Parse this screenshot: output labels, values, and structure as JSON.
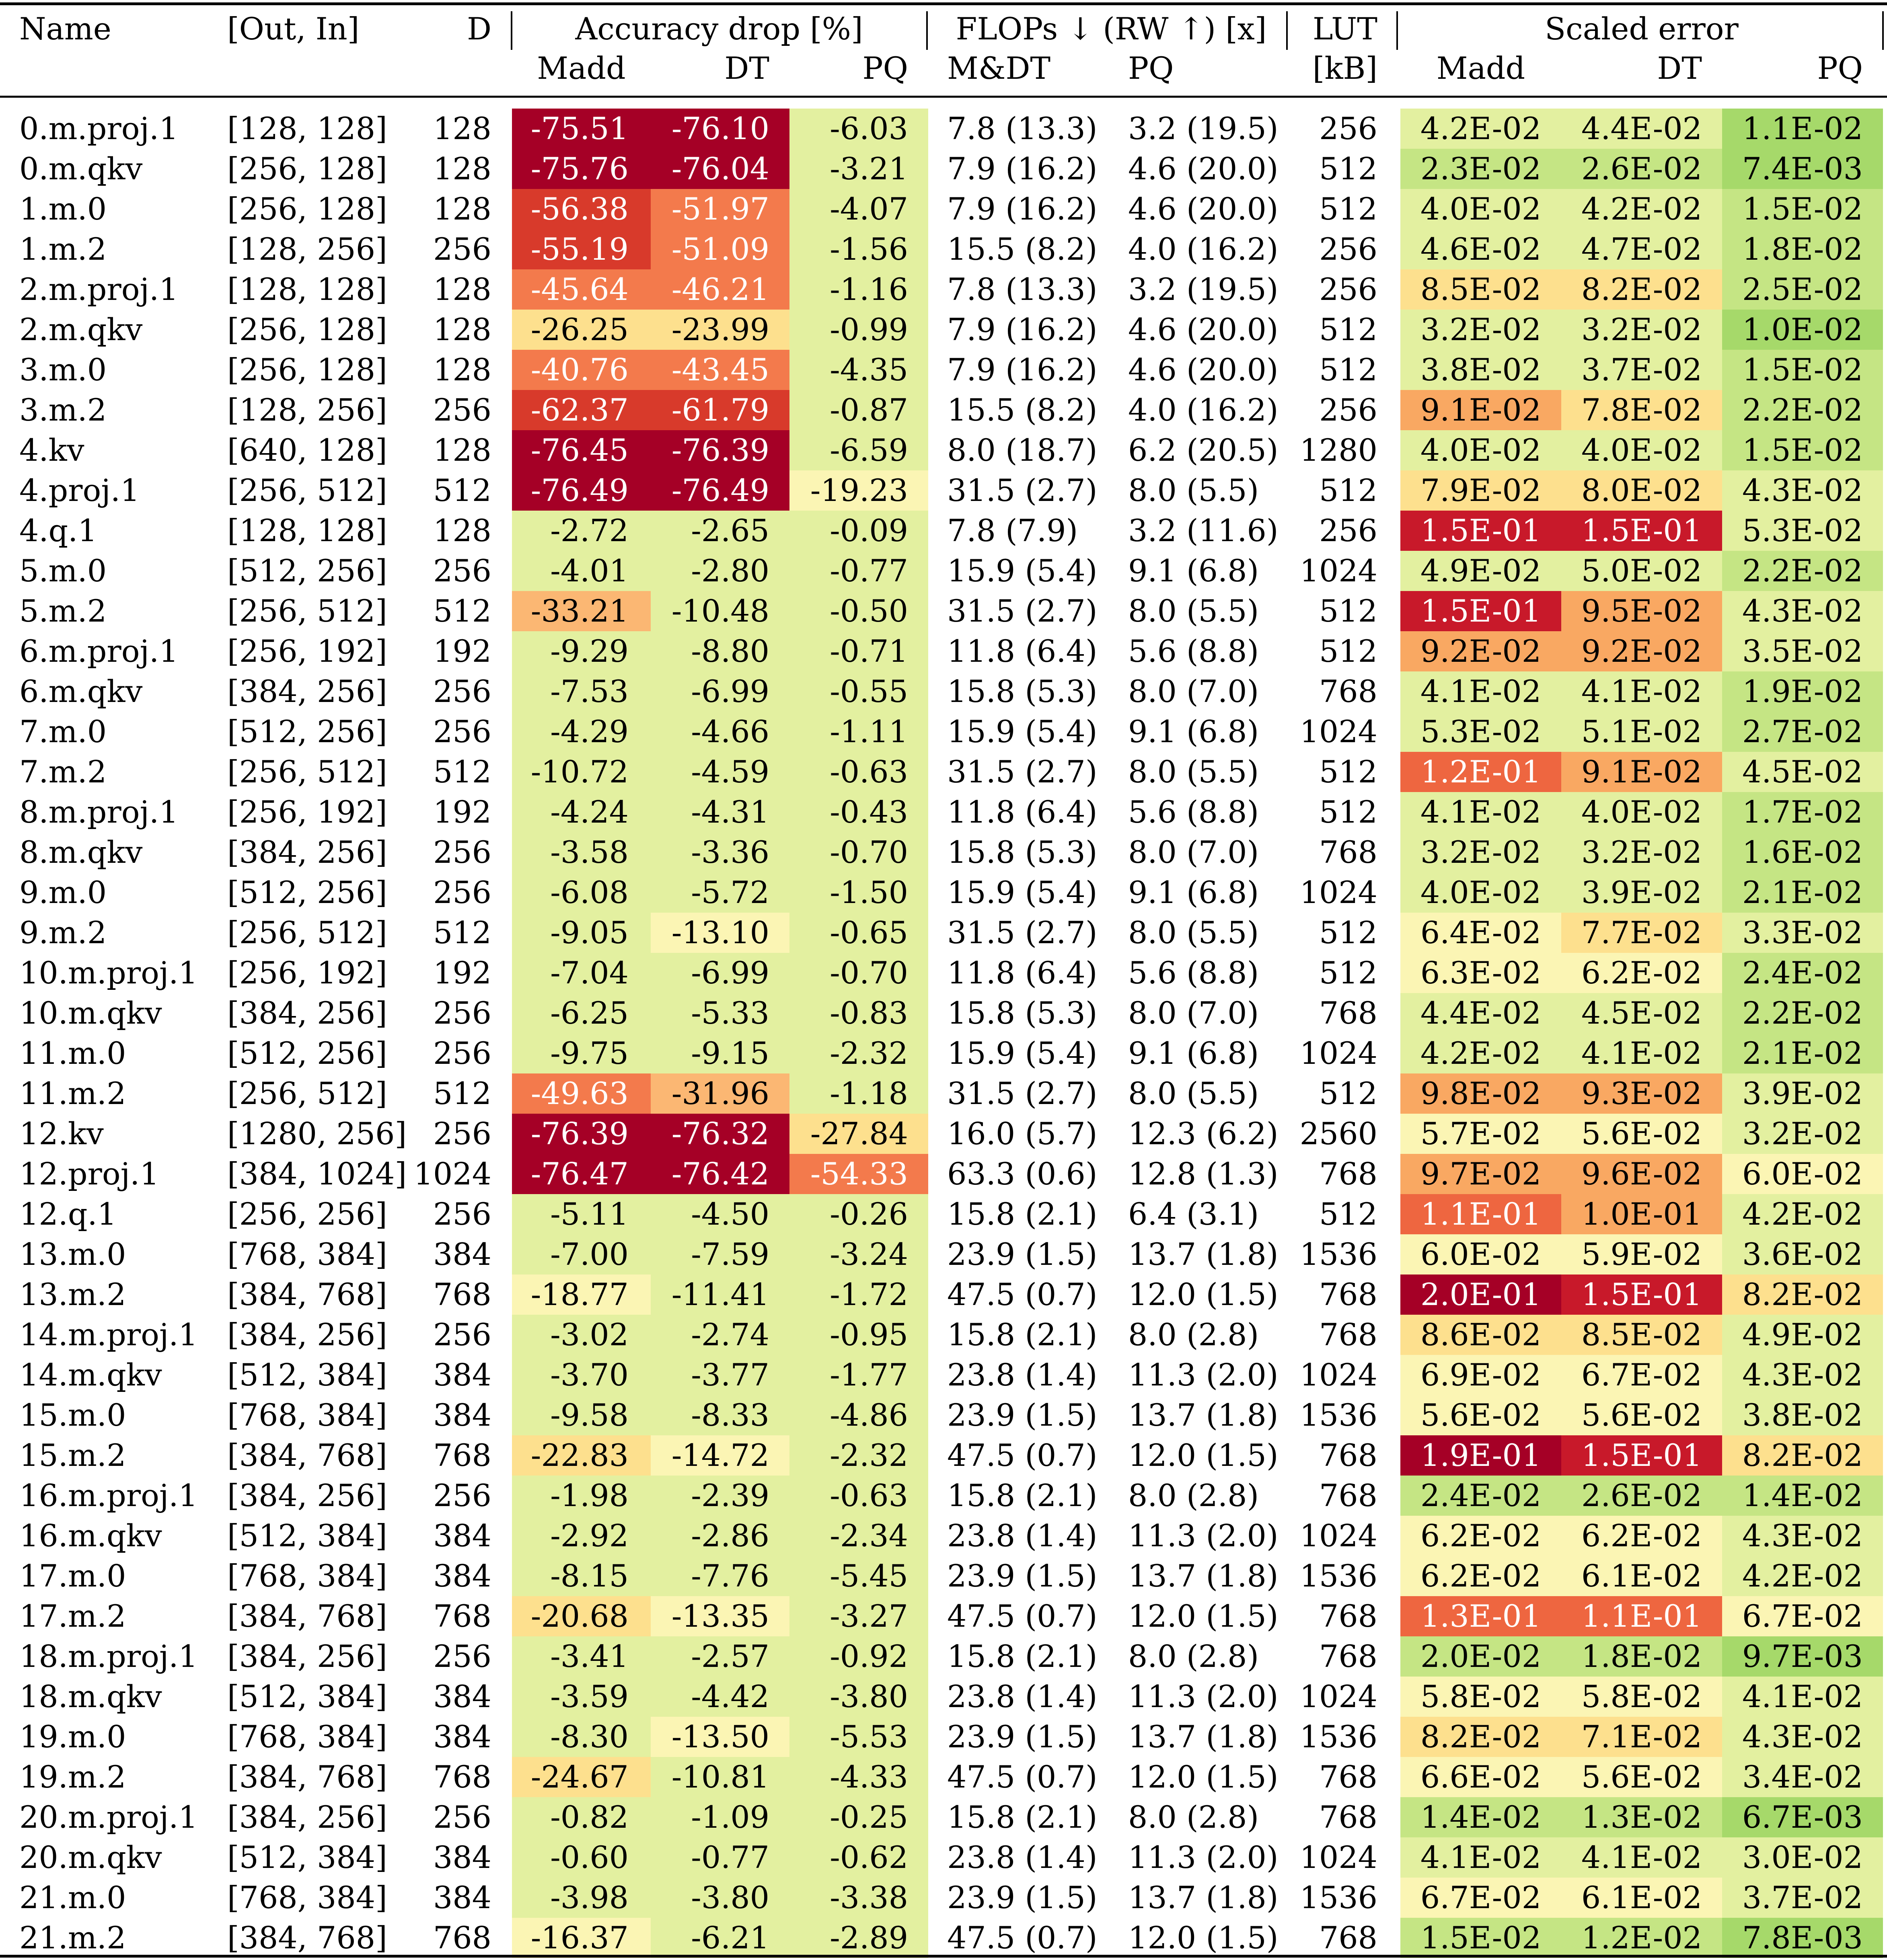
{
  "chart_data": {
    "type": "table",
    "header": {
      "name": "Name",
      "shape": "[Out, In]",
      "d": "D",
      "acc_group": "Accuracy drop [%]",
      "flops_group": "FLOPs ↓ (RW ↑) [x]",
      "lut_top": "LUT",
      "lut_bottom": "[kB]",
      "err_group": "Scaled error",
      "acc_madd": "Madd",
      "acc_dt": "DT",
      "acc_pq": "PQ",
      "flops_mdt": "M&DT",
      "flops_pq": "PQ",
      "err_madd": "Madd",
      "err_dt": "DT",
      "err_pq": "PQ"
    },
    "rows": [
      [
        "0.m.proj.1",
        "[128, 128]",
        "128",
        "-75.51",
        "-76.10",
        "-6.03",
        "7.8 (13.3)",
        "3.2 (19.5)",
        "256",
        "4.2E-02",
        "4.4E-02",
        "1.1E-02"
      ],
      [
        "0.m.qkv",
        "[256, 128]",
        "128",
        "-75.76",
        "-76.04",
        "-3.21",
        "7.9 (16.2)",
        "4.6 (20.0)",
        "512",
        "2.3E-02",
        "2.6E-02",
        "7.4E-03"
      ],
      [
        "1.m.0",
        "[256, 128]",
        "128",
        "-56.38",
        "-51.97",
        "-4.07",
        "7.9 (16.2)",
        "4.6 (20.0)",
        "512",
        "4.0E-02",
        "4.2E-02",
        "1.5E-02"
      ],
      [
        "1.m.2",
        "[128, 256]",
        "256",
        "-55.19",
        "-51.09",
        "-1.56",
        "15.5 (8.2)",
        "4.0 (16.2)",
        "256",
        "4.6E-02",
        "4.7E-02",
        "1.8E-02"
      ],
      [
        "2.m.proj.1",
        "[128, 128]",
        "128",
        "-45.64",
        "-46.21",
        "-1.16",
        "7.8 (13.3)",
        "3.2 (19.5)",
        "256",
        "8.5E-02",
        "8.2E-02",
        "2.5E-02"
      ],
      [
        "2.m.qkv",
        "[256, 128]",
        "128",
        "-26.25",
        "-23.99",
        "-0.99",
        "7.9 (16.2)",
        "4.6 (20.0)",
        "512",
        "3.2E-02",
        "3.2E-02",
        "1.0E-02"
      ],
      [
        "3.m.0",
        "[256, 128]",
        "128",
        "-40.76",
        "-43.45",
        "-4.35",
        "7.9 (16.2)",
        "4.6 (20.0)",
        "512",
        "3.8E-02",
        "3.7E-02",
        "1.5E-02"
      ],
      [
        "3.m.2",
        "[128, 256]",
        "256",
        "-62.37",
        "-61.79",
        "-0.87",
        "15.5 (8.2)",
        "4.0 (16.2)",
        "256",
        "9.1E-02",
        "7.8E-02",
        "2.2E-02"
      ],
      [
        "4.kv",
        "[640, 128]",
        "128",
        "-76.45",
        "-76.39",
        "-6.59",
        "8.0 (18.7)",
        "6.2 (20.5)",
        "1280",
        "4.0E-02",
        "4.0E-02",
        "1.5E-02"
      ],
      [
        "4.proj.1",
        "[256, 512]",
        "512",
        "-76.49",
        "-76.49",
        "-19.23",
        "31.5 (2.7)",
        "8.0 (5.5)",
        "512",
        "7.9E-02",
        "8.0E-02",
        "4.3E-02"
      ],
      [
        "4.q.1",
        "[128, 128]",
        "128",
        "-2.72",
        "-2.65",
        "-0.09",
        "7.8 (7.9)",
        "3.2 (11.6)",
        "256",
        "1.5E-01",
        "1.5E-01",
        "5.3E-02"
      ],
      [
        "5.m.0",
        "[512, 256]",
        "256",
        "-4.01",
        "-2.80",
        "-0.77",
        "15.9 (5.4)",
        "9.1 (6.8)",
        "1024",
        "4.9E-02",
        "5.0E-02",
        "2.2E-02"
      ],
      [
        "5.m.2",
        "[256, 512]",
        "512",
        "-33.21",
        "-10.48",
        "-0.50",
        "31.5 (2.7)",
        "8.0 (5.5)",
        "512",
        "1.5E-01",
        "9.5E-02",
        "4.3E-02"
      ],
      [
        "6.m.proj.1",
        "[256, 192]",
        "192",
        "-9.29",
        "-8.80",
        "-0.71",
        "11.8 (6.4)",
        "5.6 (8.8)",
        "512",
        "9.2E-02",
        "9.2E-02",
        "3.5E-02"
      ],
      [
        "6.m.qkv",
        "[384, 256]",
        "256",
        "-7.53",
        "-6.99",
        "-0.55",
        "15.8 (5.3)",
        "8.0 (7.0)",
        "768",
        "4.1E-02",
        "4.1E-02",
        "1.9E-02"
      ],
      [
        "7.m.0",
        "[512, 256]",
        "256",
        "-4.29",
        "-4.66",
        "-1.11",
        "15.9 (5.4)",
        "9.1 (6.8)",
        "1024",
        "5.3E-02",
        "5.1E-02",
        "2.7E-02"
      ],
      [
        "7.m.2",
        "[256, 512]",
        "512",
        "-10.72",
        "-4.59",
        "-0.63",
        "31.5 (2.7)",
        "8.0 (5.5)",
        "512",
        "1.2E-01",
        "9.1E-02",
        "4.5E-02"
      ],
      [
        "8.m.proj.1",
        "[256, 192]",
        "192",
        "-4.24",
        "-4.31",
        "-0.43",
        "11.8 (6.4)",
        "5.6 (8.8)",
        "512",
        "4.1E-02",
        "4.0E-02",
        "1.7E-02"
      ],
      [
        "8.m.qkv",
        "[384, 256]",
        "256",
        "-3.58",
        "-3.36",
        "-0.70",
        "15.8 (5.3)",
        "8.0 (7.0)",
        "768",
        "3.2E-02",
        "3.2E-02",
        "1.6E-02"
      ],
      [
        "9.m.0",
        "[512, 256]",
        "256",
        "-6.08",
        "-5.72",
        "-1.50",
        "15.9 (5.4)",
        "9.1 (6.8)",
        "1024",
        "4.0E-02",
        "3.9E-02",
        "2.1E-02"
      ],
      [
        "9.m.2",
        "[256, 512]",
        "512",
        "-9.05",
        "-13.10",
        "-0.65",
        "31.5 (2.7)",
        "8.0 (5.5)",
        "512",
        "6.4E-02",
        "7.7E-02",
        "3.3E-02"
      ],
      [
        "10.m.proj.1",
        "[256, 192]",
        "192",
        "-7.04",
        "-6.99",
        "-0.70",
        "11.8 (6.4)",
        "5.6 (8.8)",
        "512",
        "6.3E-02",
        "6.2E-02",
        "2.4E-02"
      ],
      [
        "10.m.qkv",
        "[384, 256]",
        "256",
        "-6.25",
        "-5.33",
        "-0.83",
        "15.8 (5.3)",
        "8.0 (7.0)",
        "768",
        "4.4E-02",
        "4.5E-02",
        "2.2E-02"
      ],
      [
        "11.m.0",
        "[512, 256]",
        "256",
        "-9.75",
        "-9.15",
        "-2.32",
        "15.9 (5.4)",
        "9.1 (6.8)",
        "1024",
        "4.2E-02",
        "4.1E-02",
        "2.1E-02"
      ],
      [
        "11.m.2",
        "[256, 512]",
        "512",
        "-49.63",
        "-31.96",
        "-1.18",
        "31.5 (2.7)",
        "8.0 (5.5)",
        "512",
        "9.8E-02",
        "9.3E-02",
        "3.9E-02"
      ],
      [
        "12.kv",
        "[1280, 256]",
        "256",
        "-76.39",
        "-76.32",
        "-27.84",
        "16.0 (5.7)",
        "12.3 (6.2)",
        "2560",
        "5.7E-02",
        "5.6E-02",
        "3.2E-02"
      ],
      [
        "12.proj.1",
        "[384, 1024]",
        "1024",
        "-76.47",
        "-76.42",
        "-54.33",
        "63.3 (0.6)",
        "12.8 (1.3)",
        "768",
        "9.7E-02",
        "9.6E-02",
        "6.0E-02"
      ],
      [
        "12.q.1",
        "[256, 256]",
        "256",
        "-5.11",
        "-4.50",
        "-0.26",
        "15.8 (2.1)",
        "6.4 (3.1)",
        "512",
        "1.1E-01",
        "1.0E-01",
        "4.2E-02"
      ],
      [
        "13.m.0",
        "[768, 384]",
        "384",
        "-7.00",
        "-7.59",
        "-3.24",
        "23.9 (1.5)",
        "13.7 (1.8)",
        "1536",
        "6.0E-02",
        "5.9E-02",
        "3.6E-02"
      ],
      [
        "13.m.2",
        "[384, 768]",
        "768",
        "-18.77",
        "-11.41",
        "-1.72",
        "47.5 (0.7)",
        "12.0 (1.5)",
        "768",
        "2.0E-01",
        "1.5E-01",
        "8.2E-02"
      ],
      [
        "14.m.proj.1",
        "[384, 256]",
        "256",
        "-3.02",
        "-2.74",
        "-0.95",
        "15.8 (2.1)",
        "8.0 (2.8)",
        "768",
        "8.6E-02",
        "8.5E-02",
        "4.9E-02"
      ],
      [
        "14.m.qkv",
        "[512, 384]",
        "384",
        "-3.70",
        "-3.77",
        "-1.77",
        "23.8 (1.4)",
        "11.3 (2.0)",
        "1024",
        "6.9E-02",
        "6.7E-02",
        "4.3E-02"
      ],
      [
        "15.m.0",
        "[768, 384]",
        "384",
        "-9.58",
        "-8.33",
        "-4.86",
        "23.9 (1.5)",
        "13.7 (1.8)",
        "1536",
        "5.6E-02",
        "5.6E-02",
        "3.8E-02"
      ],
      [
        "15.m.2",
        "[384, 768]",
        "768",
        "-22.83",
        "-14.72",
        "-2.32",
        "47.5 (0.7)",
        "12.0 (1.5)",
        "768",
        "1.9E-01",
        "1.5E-01",
        "8.2E-02"
      ],
      [
        "16.m.proj.1",
        "[384, 256]",
        "256",
        "-1.98",
        "-2.39",
        "-0.63",
        "15.8 (2.1)",
        "8.0 (2.8)",
        "768",
        "2.4E-02",
        "2.6E-02",
        "1.4E-02"
      ],
      [
        "16.m.qkv",
        "[512, 384]",
        "384",
        "-2.92",
        "-2.86",
        "-2.34",
        "23.8 (1.4)",
        "11.3 (2.0)",
        "1024",
        "6.2E-02",
        "6.2E-02",
        "4.3E-02"
      ],
      [
        "17.m.0",
        "[768, 384]",
        "384",
        "-8.15",
        "-7.76",
        "-5.45",
        "23.9 (1.5)",
        "13.7 (1.8)",
        "1536",
        "6.2E-02",
        "6.1E-02",
        "4.2E-02"
      ],
      [
        "17.m.2",
        "[384, 768]",
        "768",
        "-20.68",
        "-13.35",
        "-3.27",
        "47.5 (0.7)",
        "12.0 (1.5)",
        "768",
        "1.3E-01",
        "1.1E-01",
        "6.7E-02"
      ],
      [
        "18.m.proj.1",
        "[384, 256]",
        "256",
        "-3.41",
        "-2.57",
        "-0.92",
        "15.8 (2.1)",
        "8.0 (2.8)",
        "768",
        "2.0E-02",
        "1.8E-02",
        "9.7E-03"
      ],
      [
        "18.m.qkv",
        "[512, 384]",
        "384",
        "-3.59",
        "-4.42",
        "-3.80",
        "23.8 (1.4)",
        "11.3 (2.0)",
        "1024",
        "5.8E-02",
        "5.8E-02",
        "4.1E-02"
      ],
      [
        "19.m.0",
        "[768, 384]",
        "384",
        "-8.30",
        "-13.50",
        "-5.53",
        "23.9 (1.5)",
        "13.7 (1.8)",
        "1536",
        "8.2E-02",
        "7.1E-02",
        "4.3E-02"
      ],
      [
        "19.m.2",
        "[384, 768]",
        "768",
        "-24.67",
        "-10.81",
        "-4.33",
        "47.5 (0.7)",
        "12.0 (1.5)",
        "768",
        "6.6E-02",
        "5.6E-02",
        "3.4E-02"
      ],
      [
        "20.m.proj.1",
        "[384, 256]",
        "256",
        "-0.82",
        "-1.09",
        "-0.25",
        "15.8 (2.1)",
        "8.0 (2.8)",
        "768",
        "1.4E-02",
        "1.3E-02",
        "6.7E-03"
      ],
      [
        "20.m.qkv",
        "[512, 384]",
        "384",
        "-0.60",
        "-0.77",
        "-0.62",
        "23.8 (1.4)",
        "11.3 (2.0)",
        "1024",
        "4.1E-02",
        "4.1E-02",
        "3.0E-02"
      ],
      [
        "21.m.0",
        "[768, 384]",
        "384",
        "-3.98",
        "-3.80",
        "-3.38",
        "23.9 (1.5)",
        "13.7 (1.8)",
        "1536",
        "6.7E-02",
        "6.1E-02",
        "3.7E-02"
      ],
      [
        "21.m.2",
        "[384, 768]",
        "768",
        "-16.37",
        "-6.21",
        "-2.89",
        "47.5 (0.7)",
        "12.0 (1.5)",
        "768",
        "1.5E-02",
        "1.2E-02",
        "7.8E-03"
      ]
    ],
    "heat_colors": {
      "acc": [
        "#e3f0a0",
        "#fbf5b4",
        "#fde08e",
        "#fbb773",
        "#f37a4c",
        "#d83a2b",
        "#a50026"
      ],
      "err": [
        "#a6d96a",
        "#c5e584",
        "#e3f0a0",
        "#fbf5b4",
        "#fde08e",
        "#f9a862",
        "#ee6640",
        "#c8192a",
        "#a50026"
      ]
    },
    "text_colors": {
      "dark": "#000000",
      "light": "#ffffff"
    }
  }
}
